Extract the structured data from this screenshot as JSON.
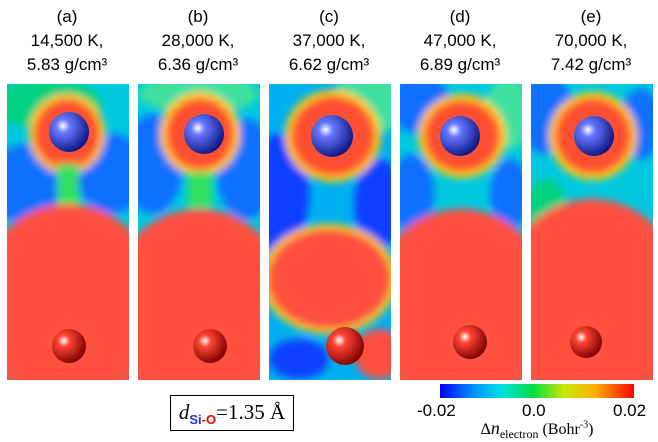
{
  "panels": [
    {
      "letter": "(a)",
      "temp": "14,500 K,",
      "density": "5.83 g/cm³"
    },
    {
      "letter": "(b)",
      "temp": "28,000 K,",
      "density": "6.36 g/cm³"
    },
    {
      "letter": "(c)",
      "temp": "37,000 K,",
      "density": "6.62 g/cm³"
    },
    {
      "letter": "(d)",
      "temp": "47,000 K,",
      "density": "6.89 g/cm³"
    },
    {
      "letter": "(e)",
      "temp": "70,000 K,",
      "density": "7.42 g/cm³"
    }
  ],
  "bond": {
    "d": "d",
    "si": "Si",
    "dash": "-",
    "o": "O",
    "value": "=1.35 Å"
  },
  "colorbar": {
    "min": "-0.02",
    "mid": "0.0",
    "max": "0.02",
    "delta": "Δ",
    "n": "n",
    "sub": "electron",
    "unit": " (Bohr",
    "exp": "-3",
    "close": ")",
    "colors": [
      "#0000ff",
      "#0096ff",
      "#00e0e0",
      "#00e040",
      "#c8e600",
      "#ffb000",
      "#ff0000"
    ]
  },
  "atom_colors": {
    "si": "#2233dd",
    "o": "#dd1100"
  }
}
